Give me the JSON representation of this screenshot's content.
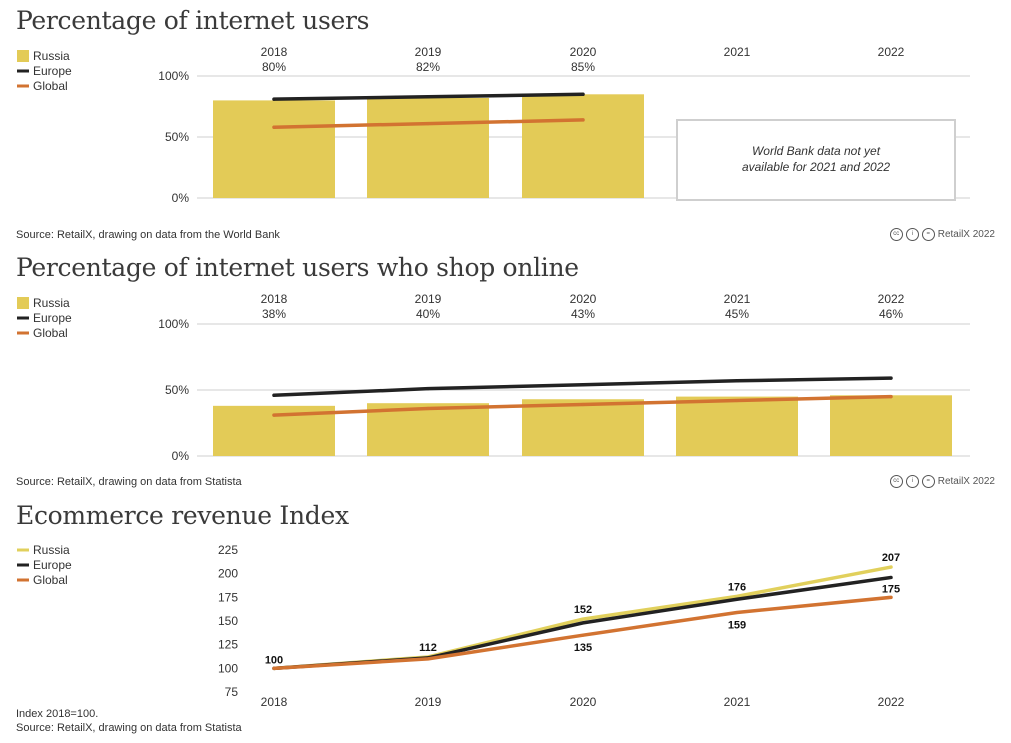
{
  "colors": {
    "russia_bar": "#e3cb57",
    "russia_line": "#e1d05c",
    "europe": "#222222",
    "global": "#d27331",
    "grid": "#cfcfcf"
  },
  "legend": [
    "Russia",
    "Europe",
    "Global"
  ],
  "chart1": {
    "title": "Percentage of internet users",
    "source": "Source: RetailX, drawing on data from the World Bank",
    "credit": "RetailX 2022",
    "note": "World Bank data not yet available for 2021 and 2022"
  },
  "chart2": {
    "title": "Percentage of internet users who shop online",
    "source": "Source: RetailX, drawing on data from Statista",
    "credit": "RetailX 2022"
  },
  "chart3": {
    "title": "Ecommerce revenue Index",
    "note": "Index 2018=100.",
    "source": "Source: RetailX, drawing on data from Statista"
  },
  "chart_data": [
    {
      "type": "bar",
      "title": "Percentage of internet users",
      "categories": [
        "2018",
        "2019",
        "2020",
        "2021",
        "2022"
      ],
      "bar_labels": [
        "80%",
        "82%",
        "85%",
        "",
        ""
      ],
      "ylim": [
        0,
        100
      ],
      "yticks": [
        "0%",
        "50%",
        "100%"
      ],
      "series": [
        {
          "name": "Russia",
          "kind": "bar",
          "values": [
            80,
            82,
            85,
            null,
            null
          ]
        },
        {
          "name": "Europe",
          "kind": "line",
          "values": [
            81,
            83,
            85,
            null,
            null
          ]
        },
        {
          "name": "Global",
          "kind": "line",
          "values": [
            58,
            61,
            64,
            null,
            null
          ]
        }
      ]
    },
    {
      "type": "bar",
      "title": "Percentage of internet users who shop online",
      "categories": [
        "2018",
        "2019",
        "2020",
        "2021",
        "2022"
      ],
      "bar_labels": [
        "38%",
        "40%",
        "43%",
        "45%",
        "46%"
      ],
      "ylim": [
        0,
        100
      ],
      "yticks": [
        "0%",
        "50%",
        "100%"
      ],
      "series": [
        {
          "name": "Russia",
          "kind": "bar",
          "values": [
            38,
            40,
            43,
            45,
            46
          ]
        },
        {
          "name": "Europe",
          "kind": "line",
          "values": [
            46,
            51,
            54,
            57,
            59
          ]
        },
        {
          "name": "Global",
          "kind": "line",
          "values": [
            31,
            36,
            39,
            42,
            45
          ]
        }
      ]
    },
    {
      "type": "line",
      "title": "Ecommerce revenue Index",
      "x": [
        "2018",
        "2019",
        "2020",
        "2021",
        "2022"
      ],
      "ylim": [
        75,
        225
      ],
      "yticks": [
        75,
        100,
        125,
        150,
        175,
        200,
        225
      ],
      "series": [
        {
          "name": "Russia",
          "values": [
            100,
            112,
            152,
            176,
            207
          ]
        },
        {
          "name": "Europe",
          "values": [
            100,
            111,
            148,
            173,
            196
          ]
        },
        {
          "name": "Global",
          "values": [
            100,
            110,
            135,
            159,
            175
          ]
        }
      ],
      "labels": {
        "Russia": [
          100,
          112,
          152,
          176,
          207
        ],
        "Global": [
          null,
          null,
          135,
          159,
          175
        ]
      }
    }
  ]
}
